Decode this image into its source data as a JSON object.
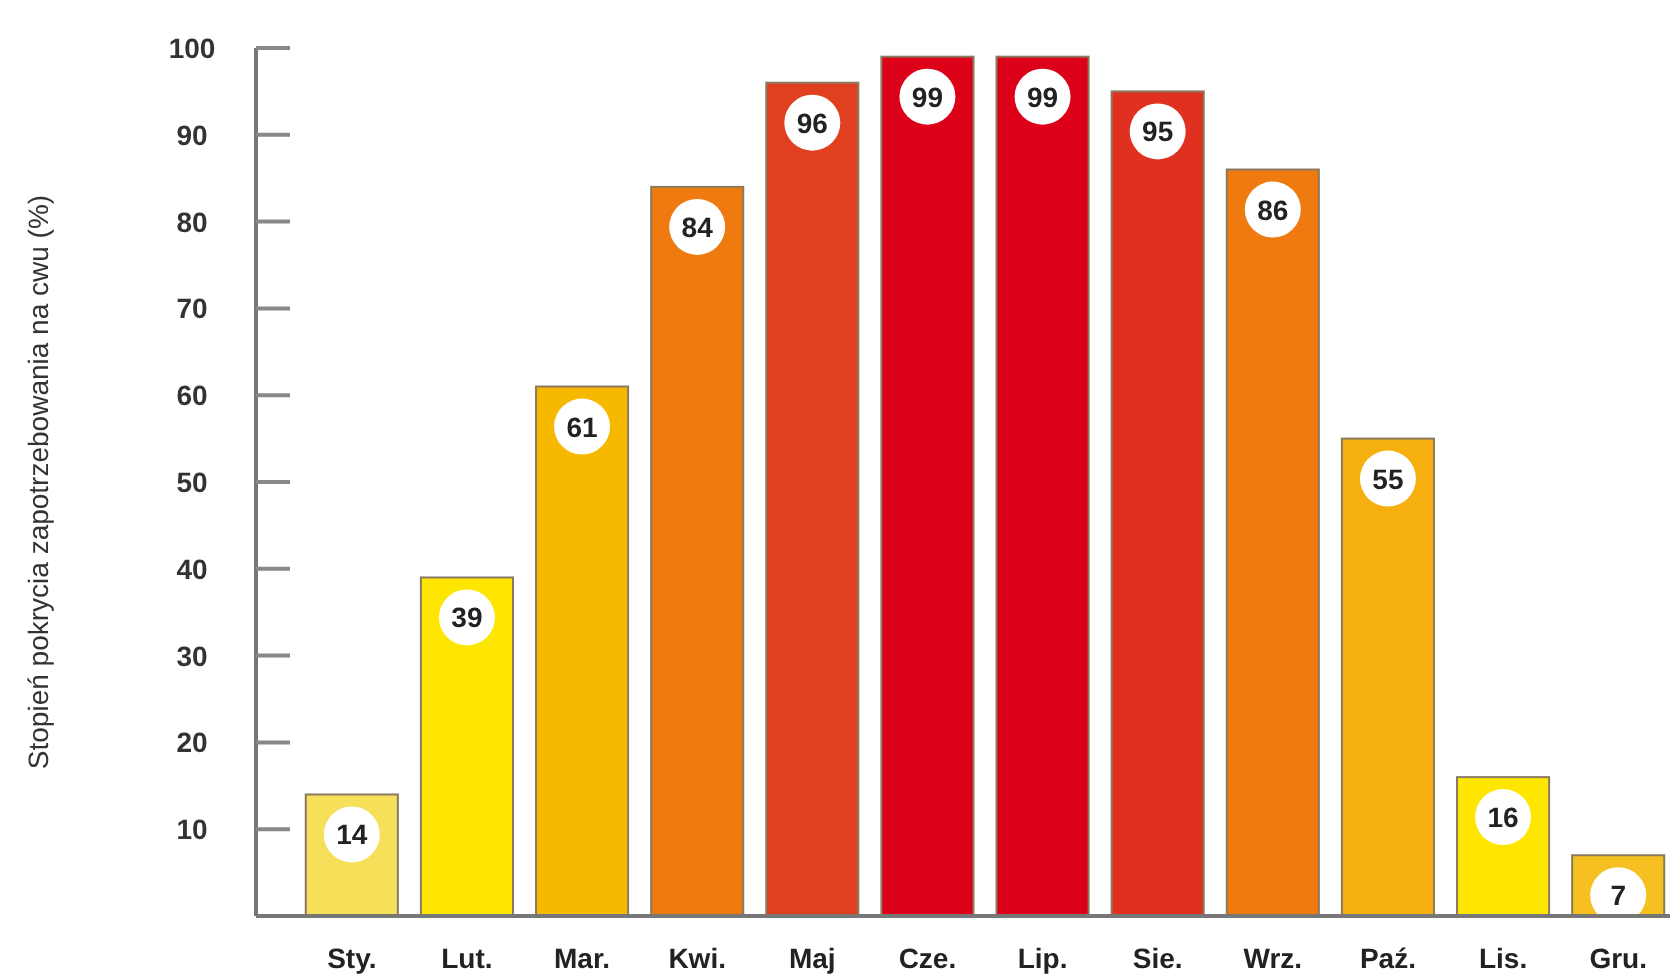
{
  "chart_data": {
    "type": "bar",
    "ylabel": "Stopień pokrycia zapotrzebowania na cwu (%)",
    "categories": [
      "Sty.",
      "Lut.",
      "Mar.",
      "Kwi.",
      "Maj",
      "Cze.",
      "Lip.",
      "Sie.",
      "Wrz.",
      "Paź.",
      "Lis.",
      "Gru."
    ],
    "values": [
      14,
      39,
      61,
      84,
      96,
      99,
      99,
      95,
      86,
      55,
      16,
      7
    ],
    "colors": [
      "#f6e05a",
      "#ffe600",
      "#f7b800",
      "#ee7a10",
      "#e04020",
      "#dc0018",
      "#dc0018",
      "#e03020",
      "#ee7a10",
      "#f5b010",
      "#ffe600",
      "#f5c020"
    ],
    "ylim": [
      0,
      100
    ],
    "yticks": [
      10,
      20,
      30,
      40,
      50,
      60,
      70,
      80,
      90,
      100
    ],
    "data_labels": true,
    "grid": false
  }
}
